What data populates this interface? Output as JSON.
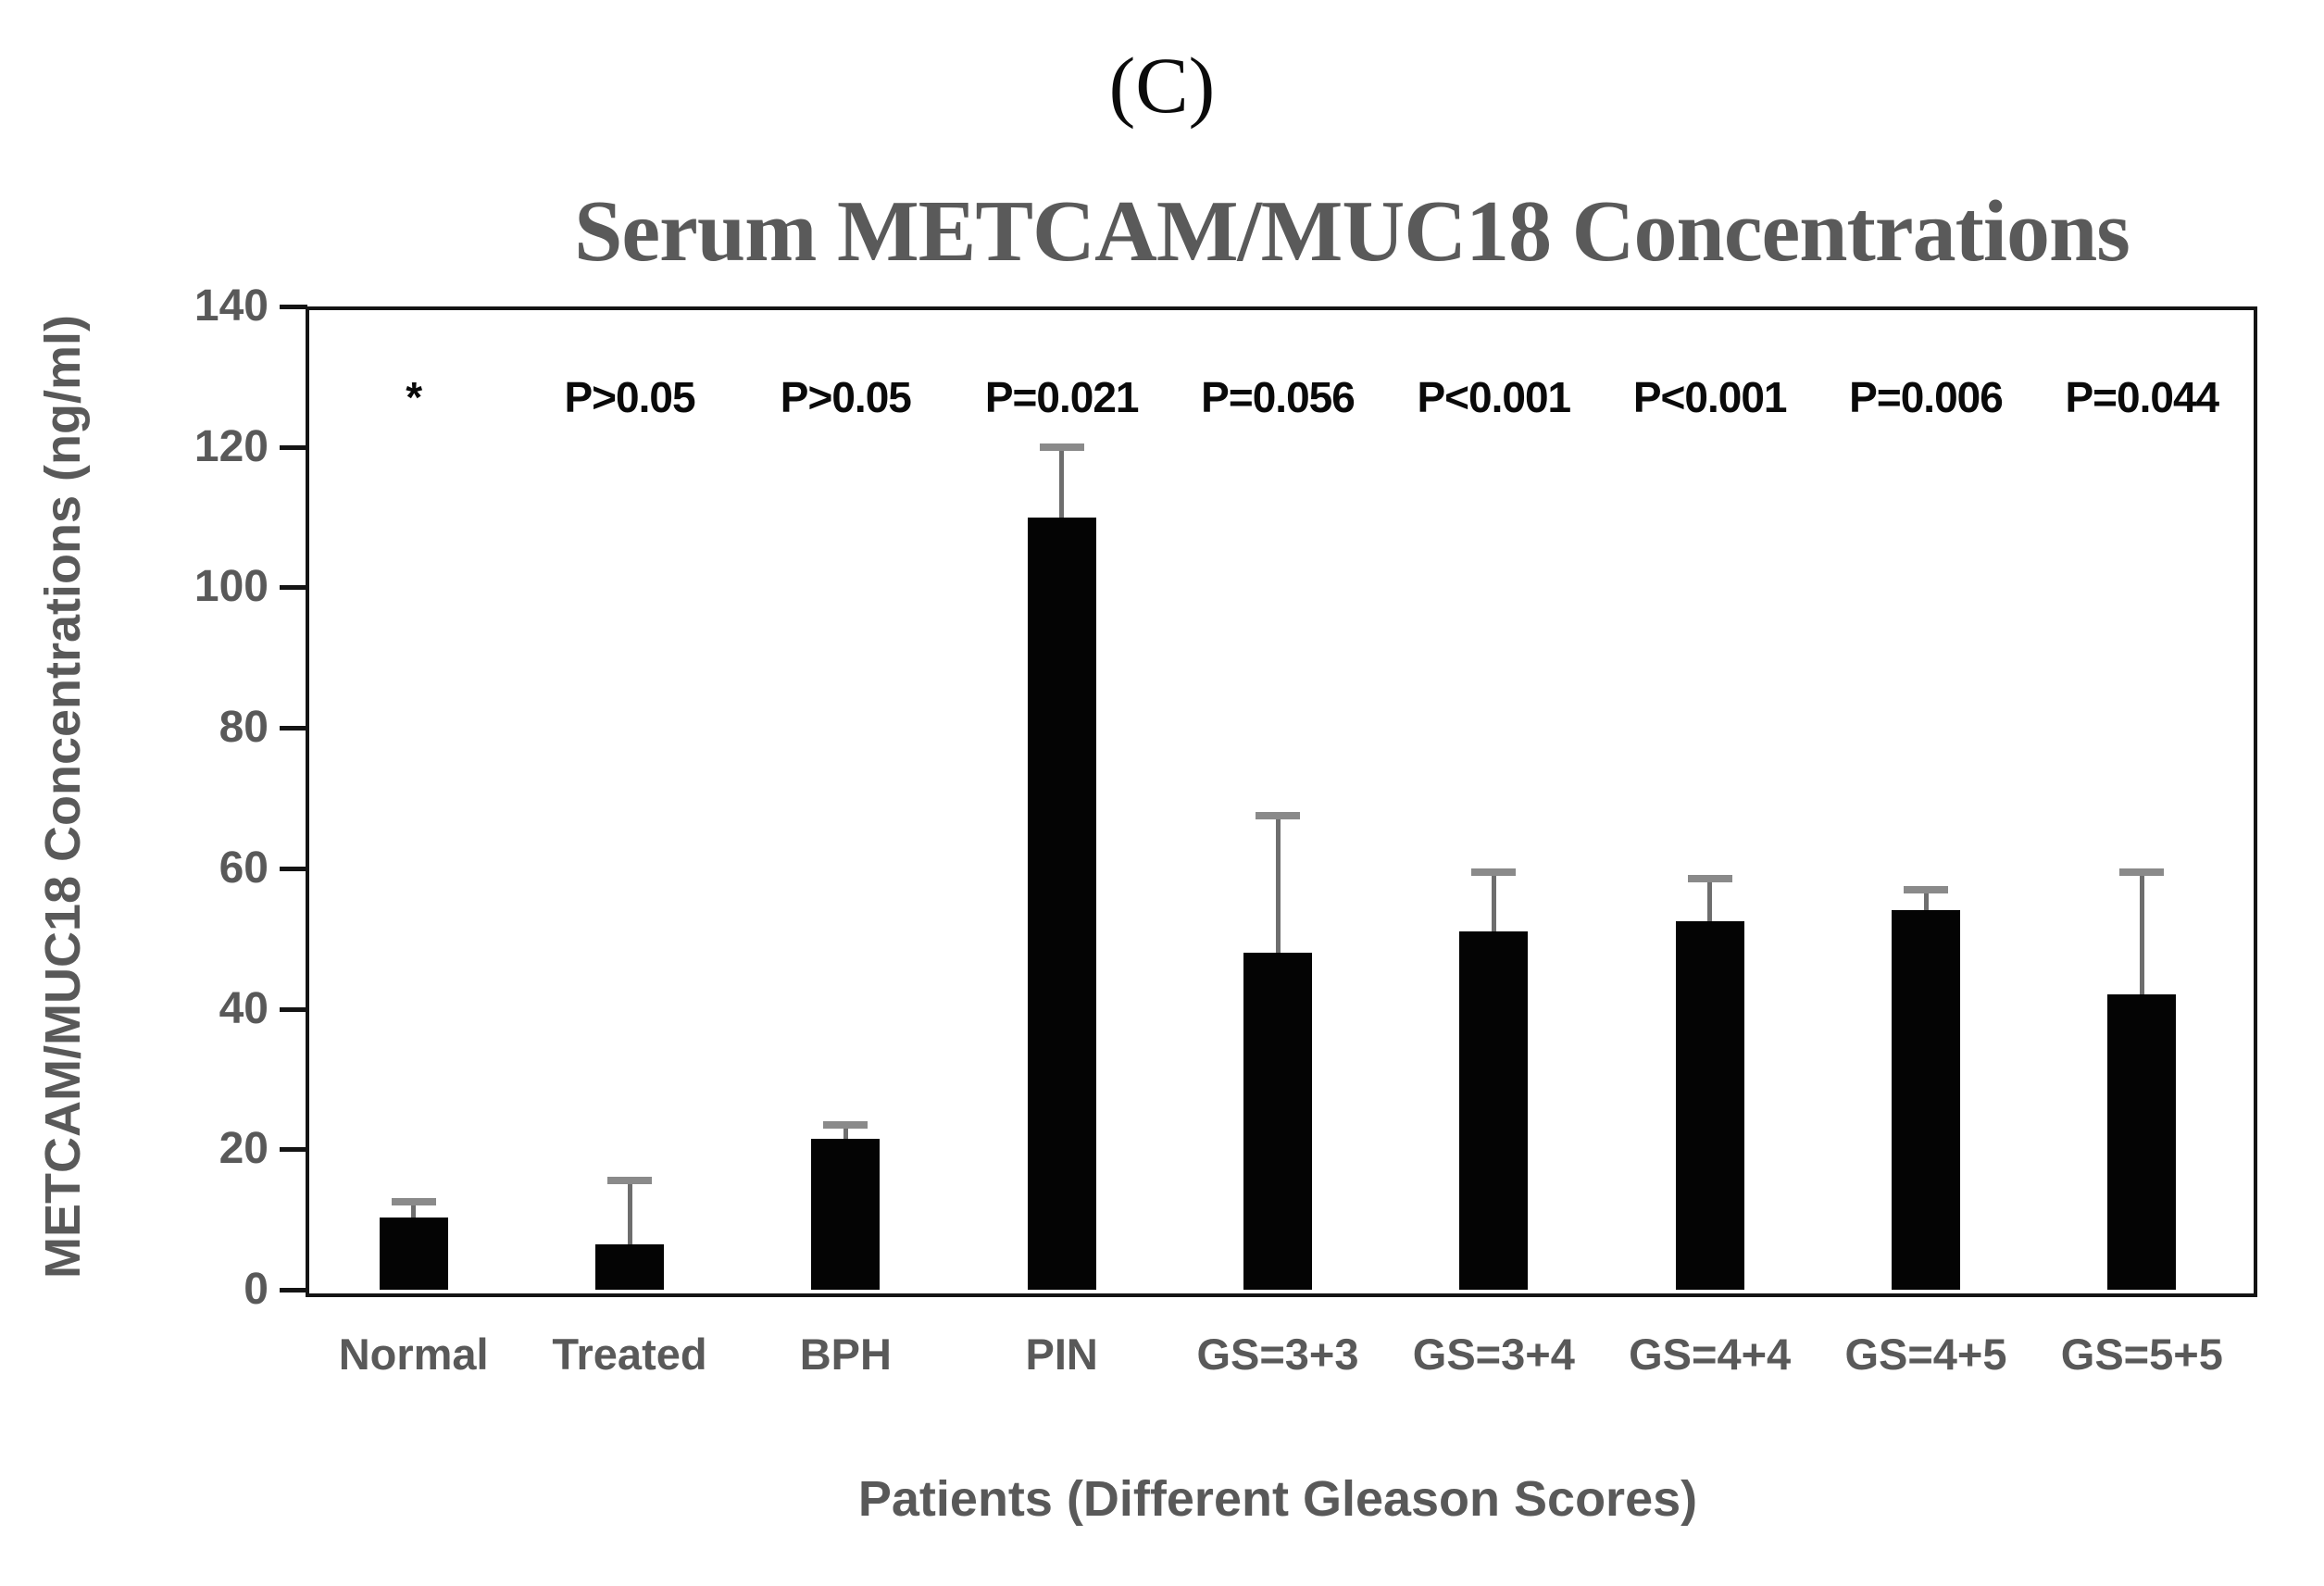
{
  "panel_label": "(C)",
  "chart_data": {
    "type": "bar",
    "title": "Serum METCAM/MUC18 Concentrations",
    "xlabel": "Patients (Different Gleason Scores)",
    "ylabel": "METCAM/MUC18 Concentrations (ng/ml)",
    "ylim": [
      0,
      140
    ],
    "yticks": [
      0,
      20,
      40,
      60,
      80,
      100,
      120,
      140
    ],
    "grid": false,
    "legend": false,
    "bar_color": "#040404",
    "error_bar_color": "#6e6e6e",
    "axis_text_color": "#595959",
    "annotation_text_color": "#0a0a0a",
    "categories": [
      "Normal",
      "Treated",
      "BPH",
      "PIN",
      "GS=3+3",
      "GS=3+4",
      "GS=4+4",
      "GS=4+5",
      "GS=5+5"
    ],
    "values": [
      10.3,
      6.5,
      21.5,
      110,
      48,
      51,
      52.5,
      54,
      42
    ],
    "error_plus": [
      2.2,
      9,
      2,
      10,
      19.5,
      8.5,
      6,
      3,
      17.5
    ],
    "significance_labels": [
      "*",
      "P>0.05",
      "P>0.05",
      "P=0.021",
      "P=0.056",
      "P<0.001",
      "P<0.001",
      "P=0.006",
      "P=0.044"
    ]
  }
}
